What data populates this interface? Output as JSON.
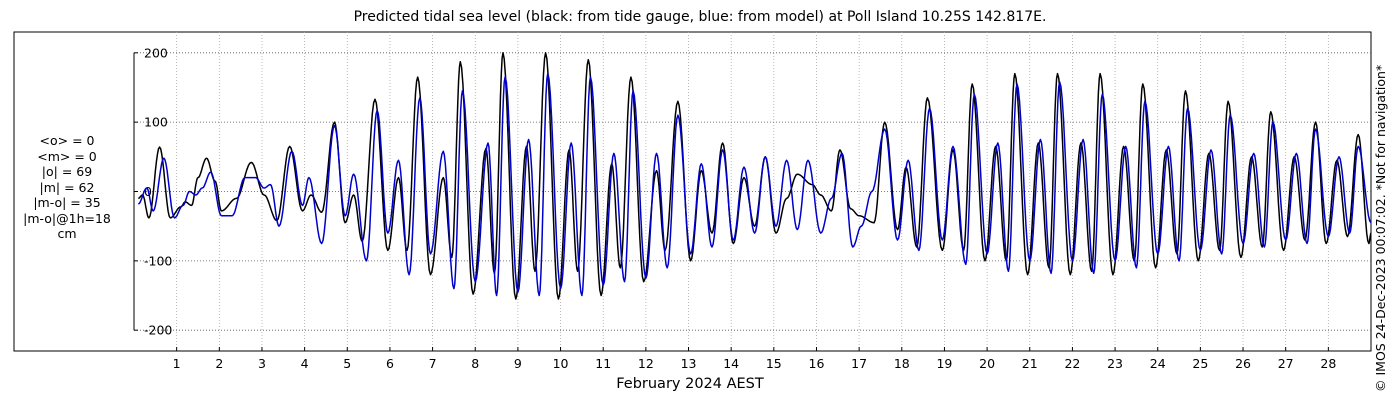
{
  "title": "Predicted tidal sea level (black: from tide gauge, blue: from model) at Poll Island 10.25S 142.817E.",
  "xlabel": "February 2024 AEST",
  "copyright": "© IMOS 24-Dec-2023 00:07:02. *Not for navigation*",
  "stats": [
    "<o> = 0",
    "<m> = 0",
    "|o| = 69",
    "|m| = 62",
    "|m-o| = 35",
    "|m-o|@1h=18",
    "cm"
  ],
  "colors": {
    "observed": "#000000",
    "model": "#0000cc",
    "grid": "#aaaaaa"
  },
  "chart_data": {
    "type": "line",
    "title": "Predicted tidal sea level (black: from tide gauge, blue: from model) at Poll Island 10.25S 142.817E.",
    "xlabel": "February 2024 AEST",
    "ylabel": "",
    "xlim": [
      0,
      29
    ],
    "ylim": [
      -230,
      230
    ],
    "x_ticks": [
      1,
      2,
      3,
      4,
      5,
      6,
      7,
      8,
      9,
      10,
      11,
      12,
      13,
      14,
      15,
      16,
      17,
      18,
      19,
      20,
      21,
      22,
      23,
      24,
      25,
      26,
      27,
      28
    ],
    "y_ticks": [
      -200,
      -100,
      0,
      100,
      200
    ],
    "y_tick_labels": [
      "-200",
      "-100",
      "0",
      "100",
      "200"
    ],
    "grid": true,
    "series": [
      {
        "name": "tide gauge",
        "color": "#000000",
        "points": [
          [
            0.1,
            -10
          ],
          [
            0.2,
            -5
          ],
          [
            0.35,
            -38
          ],
          [
            0.6,
            64
          ],
          [
            0.85,
            -38
          ],
          [
            1.1,
            -22
          ],
          [
            1.2,
            -15
          ],
          [
            1.35,
            -20
          ],
          [
            1.5,
            20
          ],
          [
            1.7,
            48
          ],
          [
            1.9,
            15
          ],
          [
            2.05,
            -28
          ],
          [
            2.4,
            -10
          ],
          [
            2.75,
            42
          ],
          [
            3.05,
            -5
          ],
          [
            3.35,
            -42
          ],
          [
            3.65,
            65
          ],
          [
            3.95,
            -28
          ],
          [
            4.15,
            -5
          ],
          [
            4.4,
            -30
          ],
          [
            4.7,
            100
          ],
          [
            4.95,
            -45
          ],
          [
            5.15,
            -5
          ],
          [
            5.35,
            -72
          ],
          [
            5.65,
            133
          ],
          [
            5.95,
            -85
          ],
          [
            6.2,
            20
          ],
          [
            6.4,
            -85
          ],
          [
            6.65,
            165
          ],
          [
            6.95,
            -120
          ],
          [
            7.25,
            20
          ],
          [
            7.45,
            -95
          ],
          [
            7.65,
            187
          ],
          [
            7.95,
            -148
          ],
          [
            8.25,
            62
          ],
          [
            8.45,
            -118
          ],
          [
            8.65,
            200
          ],
          [
            8.95,
            -155
          ],
          [
            9.2,
            65
          ],
          [
            9.4,
            -115
          ],
          [
            9.65,
            200
          ],
          [
            9.95,
            -155
          ],
          [
            10.2,
            60
          ],
          [
            10.4,
            -115
          ],
          [
            10.65,
            190
          ],
          [
            10.95,
            -150
          ],
          [
            11.2,
            40
          ],
          [
            11.4,
            -110
          ],
          [
            11.65,
            165
          ],
          [
            11.95,
            -130
          ],
          [
            12.25,
            30
          ],
          [
            12.45,
            -85
          ],
          [
            12.75,
            130
          ],
          [
            13.05,
            -100
          ],
          [
            13.3,
            30
          ],
          [
            13.55,
            -60
          ],
          [
            13.8,
            70
          ],
          [
            14.05,
            -75
          ],
          [
            14.3,
            20
          ],
          [
            14.55,
            -50
          ],
          [
            14.8,
            50
          ],
          [
            15.05,
            -60
          ],
          [
            15.3,
            -10
          ],
          [
            15.55,
            25
          ],
          [
            15.9,
            10
          ],
          [
            16.1,
            -5
          ],
          [
            16.35,
            -28
          ],
          [
            16.55,
            60
          ],
          [
            16.8,
            -25
          ],
          [
            17.0,
            -35
          ],
          [
            17.35,
            -45
          ],
          [
            17.6,
            100
          ],
          [
            17.9,
            -55
          ],
          [
            18.1,
            35
          ],
          [
            18.35,
            -80
          ],
          [
            18.6,
            135
          ],
          [
            18.95,
            -85
          ],
          [
            19.2,
            60
          ],
          [
            19.45,
            -85
          ],
          [
            19.65,
            155
          ],
          [
            19.95,
            -100
          ],
          [
            20.2,
            65
          ],
          [
            20.45,
            -100
          ],
          [
            20.65,
            170
          ],
          [
            20.95,
            -120
          ],
          [
            21.2,
            70
          ],
          [
            21.45,
            -110
          ],
          [
            21.65,
            170
          ],
          [
            21.95,
            -120
          ],
          [
            22.2,
            70
          ],
          [
            22.45,
            -115
          ],
          [
            22.65,
            170
          ],
          [
            22.95,
            -120
          ],
          [
            23.2,
            65
          ],
          [
            23.45,
            -100
          ],
          [
            23.65,
            155
          ],
          [
            23.95,
            -110
          ],
          [
            24.2,
            60
          ],
          [
            24.45,
            -90
          ],
          [
            24.65,
            145
          ],
          [
            24.95,
            -100
          ],
          [
            25.2,
            55
          ],
          [
            25.45,
            -85
          ],
          [
            25.65,
            130
          ],
          [
            25.95,
            -95
          ],
          [
            26.2,
            50
          ],
          [
            26.45,
            -80
          ],
          [
            26.65,
            115
          ],
          [
            26.95,
            -85
          ],
          [
            27.2,
            50
          ],
          [
            27.45,
            -70
          ],
          [
            27.7,
            100
          ],
          [
            27.95,
            -75
          ],
          [
            28.2,
            45
          ],
          [
            28.45,
            -65
          ],
          [
            28.7,
            82
          ],
          [
            28.95,
            -75
          ],
          [
            29.0,
            -60
          ]
        ]
      },
      {
        "name": "model",
        "color": "#0000cc",
        "points": [
          [
            0.1,
            -18
          ],
          [
            0.3,
            5
          ],
          [
            0.45,
            -28
          ],
          [
            0.7,
            48
          ],
          [
            0.95,
            -38
          ],
          [
            1.15,
            -20
          ],
          [
            1.3,
            0
          ],
          [
            1.45,
            -5
          ],
          [
            1.6,
            5
          ],
          [
            1.8,
            28
          ],
          [
            2.05,
            -35
          ],
          [
            2.3,
            -35
          ],
          [
            2.6,
            20
          ],
          [
            2.85,
            20
          ],
          [
            3.05,
            5
          ],
          [
            3.2,
            10
          ],
          [
            3.4,
            -50
          ],
          [
            3.7,
            58
          ],
          [
            3.95,
            -20
          ],
          [
            4.1,
            20
          ],
          [
            4.4,
            -75
          ],
          [
            4.7,
            95
          ],
          [
            4.95,
            -35
          ],
          [
            5.15,
            25
          ],
          [
            5.45,
            -100
          ],
          [
            5.7,
            117
          ],
          [
            5.95,
            -60
          ],
          [
            6.2,
            45
          ],
          [
            6.45,
            -120
          ],
          [
            6.7,
            135
          ],
          [
            6.95,
            -90
          ],
          [
            7.25,
            58
          ],
          [
            7.5,
            -140
          ],
          [
            7.7,
            145
          ],
          [
            8.0,
            -130
          ],
          [
            8.3,
            70
          ],
          [
            8.5,
            -150
          ],
          [
            8.7,
            165
          ],
          [
            9.0,
            -145
          ],
          [
            9.25,
            75
          ],
          [
            9.5,
            -150
          ],
          [
            9.7,
            170
          ],
          [
            10.0,
            -140
          ],
          [
            10.25,
            70
          ],
          [
            10.5,
            -150
          ],
          [
            10.7,
            165
          ],
          [
            11.0,
            -135
          ],
          [
            11.25,
            55
          ],
          [
            11.5,
            -130
          ],
          [
            11.7,
            145
          ],
          [
            12.0,
            -125
          ],
          [
            12.25,
            55
          ],
          [
            12.5,
            -110
          ],
          [
            12.75,
            110
          ],
          [
            13.05,
            -90
          ],
          [
            13.3,
            40
          ],
          [
            13.55,
            -80
          ],
          [
            13.8,
            60
          ],
          [
            14.05,
            -70
          ],
          [
            14.3,
            35
          ],
          [
            14.55,
            -60
          ],
          [
            14.8,
            50
          ],
          [
            15.05,
            -50
          ],
          [
            15.3,
            45
          ],
          [
            15.55,
            -55
          ],
          [
            15.8,
            45
          ],
          [
            16.1,
            -60
          ],
          [
            16.35,
            -10
          ],
          [
            16.6,
            55
          ],
          [
            16.85,
            -80
          ],
          [
            17.05,
            -50
          ],
          [
            17.3,
            0
          ],
          [
            17.6,
            90
          ],
          [
            17.9,
            -70
          ],
          [
            18.15,
            45
          ],
          [
            18.4,
            -85
          ],
          [
            18.65,
            120
          ],
          [
            18.95,
            -70
          ],
          [
            19.2,
            65
          ],
          [
            19.5,
            -105
          ],
          [
            19.7,
            140
          ],
          [
            20.0,
            -90
          ],
          [
            20.25,
            70
          ],
          [
            20.5,
            -115
          ],
          [
            20.7,
            155
          ],
          [
            21.0,
            -100
          ],
          [
            21.25,
            75
          ],
          [
            21.5,
            -118
          ],
          [
            21.7,
            158
          ],
          [
            22.0,
            -100
          ],
          [
            22.25,
            75
          ],
          [
            22.5,
            -118
          ],
          [
            22.7,
            140
          ],
          [
            23.0,
            -100
          ],
          [
            23.25,
            65
          ],
          [
            23.5,
            -110
          ],
          [
            23.7,
            130
          ],
          [
            24.0,
            -90
          ],
          [
            24.25,
            65
          ],
          [
            24.5,
            -100
          ],
          [
            24.7,
            120
          ],
          [
            25.0,
            -85
          ],
          [
            25.25,
            60
          ],
          [
            25.5,
            -90
          ],
          [
            25.7,
            110
          ],
          [
            26.0,
            -75
          ],
          [
            26.25,
            55
          ],
          [
            26.5,
            -80
          ],
          [
            26.7,
            100
          ],
          [
            27.0,
            -70
          ],
          [
            27.25,
            55
          ],
          [
            27.5,
            -75
          ],
          [
            27.7,
            90
          ],
          [
            28.0,
            -65
          ],
          [
            28.25,
            50
          ],
          [
            28.5,
            -60
          ],
          [
            28.7,
            65
          ],
          [
            29.0,
            -45
          ]
        ]
      }
    ]
  }
}
